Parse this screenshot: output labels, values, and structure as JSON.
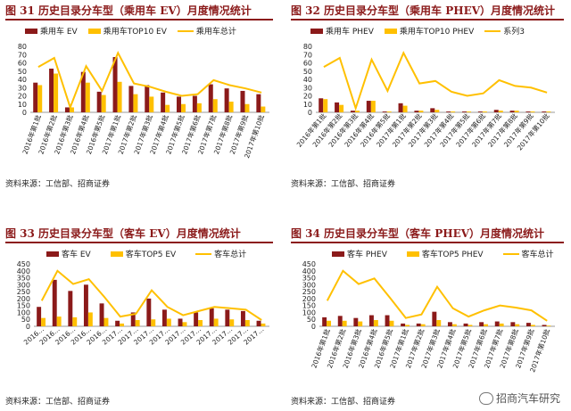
{
  "colors": {
    "dark_red": "#8b1a1a",
    "yellow": "#ffc000",
    "line": "#ffc000",
    "title": "#8b1a1a"
  },
  "watermark": "招商汽车研究",
  "panels": [
    {
      "title": "图 31 历史目录分车型（乘用车 EV）月度情况统计",
      "source": "资料来源：工信部、招商证券",
      "legend": {
        "bar1": "乘用车 EV",
        "bar2": "乘用车TOP10 EV",
        "line": "乘用车总计"
      },
      "chart_data": {
        "type": "bar",
        "categories": [
          "2016年第1批",
          "2016年第2批",
          "2016年第3批",
          "2016年第4批",
          "2016年第5批",
          "2017年第1批",
          "2017年第2批",
          "2017年第3批",
          "2017年第4批",
          "2017年第5批",
          "2017年第6批",
          "2017年第7批",
          "2017年第8批",
          "2017年第9批",
          "2017年第10批"
        ],
        "yticks": [
          "0",
          "10",
          "20",
          "30",
          "40",
          "50",
          "60",
          "70",
          "80"
        ],
        "ylim": [
          0,
          80
        ],
        "series": [
          {
            "name": "乘用车 EV",
            "kind": "bar",
            "values": [
              36,
              53,
              6,
              49,
              25,
              67,
              32,
              33,
              24,
              19,
              20,
              34,
              29,
              26,
              22
            ]
          },
          {
            "name": "乘用车TOP10 EV",
            "kind": "bar",
            "values": [
              33,
              47,
              6,
              36,
              21,
              37,
              22,
              19,
              9,
              10,
              11,
              16,
              13,
              10,
              7
            ]
          },
          {
            "name": "乘用车总计",
            "kind": "line",
            "values": [
              55,
              66,
              6,
              56,
              26,
              72,
              35,
              31,
              25,
              20,
              22,
              39,
              33,
              29,
              24
            ]
          }
        ]
      }
    },
    {
      "title": "图 32 历史目录分车型（乘用车 PHEV）月度情况统计",
      "source": "资料来源：工信部、招商证券",
      "legend": {
        "bar1": "乘用车 PHEV",
        "bar2": "乘用车TOP10 PHEV",
        "line": "系列3"
      },
      "chart_data": {
        "type": "bar",
        "categories": [
          "2016年第1批",
          "2016年第2批",
          "2016年第3批",
          "2016年第4批",
          "2016年第5批",
          "2017年第1批",
          "2017年第2批",
          "2017年第3批",
          "2017年第4批",
          "2017年第5批",
          "2017年第6批",
          "2017年第7批",
          "2017年第8批",
          "2017年第9批",
          "2017年第10批"
        ],
        "yticks": [
          "0",
          "10",
          "20",
          "30",
          "40",
          "50",
          "60",
          "70",
          "80"
        ],
        "ylim": [
          0,
          80
        ],
        "series": [
          {
            "name": "乘用车 PHEV",
            "kind": "bar",
            "values": [
              17,
              12,
              2,
              14,
              1,
              11,
              2,
              5,
              1,
              1,
              1,
              3,
              2,
              1,
              1
            ]
          },
          {
            "name": "乘用车TOP10 PHEV",
            "kind": "bar",
            "values": [
              16,
              9,
              2,
              14,
              1,
              8,
              2,
              3,
              1,
              1,
              1,
              2,
              2,
              1,
              1
            ]
          },
          {
            "name": "系列3",
            "kind": "line",
            "values": [
              55,
              66,
              5,
              64,
              26,
              72,
              35,
              38,
              25,
              20,
              23,
              39,
              32,
              30,
              24
            ]
          }
        ]
      }
    },
    {
      "title": "图 33 历史目录分车型（客车 EV）月度情况统计",
      "source": "资料来源：工信部、招商证券",
      "legend": {
        "bar1": "客车 EV",
        "bar2": "客车TOP5 EV",
        "line": "客车总计"
      },
      "chart_data": {
        "type": "bar",
        "categories": [
          "2016…",
          "2016…",
          "2016…",
          "2016…",
          "2016…",
          "2017…",
          "2017…",
          "2017…",
          "2017…",
          "2017…",
          "2017…",
          "2017…",
          "2017…",
          "2017…",
          "2017…"
        ],
        "yticks": [
          "0",
          "50",
          "100",
          "150",
          "200",
          "250",
          "300",
          "350",
          "400",
          "450"
        ],
        "ylim": [
          0,
          450
        ],
        "series": [
          {
            "name": "客车 EV",
            "kind": "bar",
            "values": [
              140,
              335,
              255,
              300,
              165,
              40,
              100,
              200,
              120,
              55,
              100,
              130,
              120,
              110,
              40
            ]
          },
          {
            "name": "客车TOP5 EV",
            "kind": "bar",
            "values": [
              60,
              70,
              65,
              100,
              60,
              20,
              45,
              50,
              55,
              30,
              45,
              55,
              50,
              45,
              20
            ]
          },
          {
            "name": "客车总计",
            "kind": "line",
            "values": [
              185,
              400,
              305,
              340,
              210,
              70,
              90,
              260,
              140,
              80,
              110,
              140,
              130,
              120,
              45
            ]
          }
        ]
      }
    },
    {
      "title": "图 34 历史目录分车型（客车 PHEV）月度情况统计",
      "source": "资料来源：工信部、招商证券",
      "legend": {
        "bar1": "客车 PHEV",
        "bar2": "客车TOP5 PHEV",
        "line": "客车总计"
      },
      "chart_data": {
        "type": "bar",
        "categories": [
          "2016年第1批",
          "2016年第2批",
          "2016年第3批",
          "2016年第4批",
          "2016年第5批",
          "2017年第1批",
          "2017年第2批",
          "2017年第3批",
          "2017年第4批",
          "2017年第5批",
          "2017年第6批",
          "2017年第7批",
          "2017年第8批",
          "2017年第9批",
          "2017年第10批"
        ],
        "yticks": [
          "0",
          "50",
          "100",
          "150",
          "200",
          "250",
          "300",
          "350",
          "400",
          "450"
        ],
        "ylim": [
          0,
          450
        ],
        "series": [
          {
            "name": "客车 PHEV",
            "kind": "bar",
            "values": [
              65,
              75,
              60,
              80,
              80,
              20,
              20,
              105,
              30,
              20,
              30,
              35,
              30,
              25,
              10
            ]
          },
          {
            "name": "客车TOP5 PHEV",
            "kind": "bar",
            "values": [
              40,
              40,
              35,
              45,
              40,
              10,
              15,
              45,
              15,
              10,
              15,
              20,
              15,
              10,
              5
            ]
          },
          {
            "name": "客车总计",
            "kind": "line",
            "values": [
              185,
              400,
              305,
              345,
              205,
              60,
              85,
              285,
              130,
              70,
              115,
              150,
              135,
              115,
              40
            ]
          }
        ]
      }
    }
  ]
}
